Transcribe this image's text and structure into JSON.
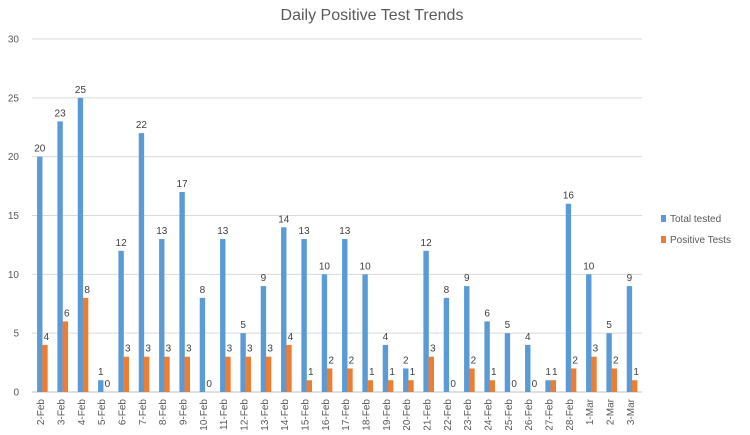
{
  "chart_data": {
    "type": "bar",
    "title": "Daily Positive Test Trends",
    "xlabel": "",
    "ylabel": "",
    "ylim": [
      0,
      30
    ],
    "yticks": [
      0,
      5,
      10,
      15,
      20,
      25,
      30
    ],
    "grid": true,
    "legend_position": "right",
    "categories": [
      "2-Feb",
      "3-Feb",
      "4-Feb",
      "5-Feb",
      "6-Feb",
      "7-Feb",
      "8-Feb",
      "9-Feb",
      "10-Feb",
      "11-Feb",
      "12-Feb",
      "13-Feb",
      "14-Feb",
      "15-Feb",
      "16-Feb",
      "17-Feb",
      "18-Feb",
      "19-Feb",
      "20-Feb",
      "21-Feb",
      "22-Feb",
      "23-Feb",
      "24-Feb",
      "25-Feb",
      "26-Feb",
      "27-Feb",
      "28-Feb",
      "1-Mar",
      "2-Mar",
      "3-Mar"
    ],
    "series": [
      {
        "name": "Total tested",
        "color": "#5b9bd5",
        "values": [
          20,
          23,
          25,
          1,
          12,
          22,
          13,
          17,
          8,
          13,
          5,
          9,
          14,
          13,
          10,
          13,
          10,
          4,
          2,
          12,
          8,
          9,
          6,
          5,
          4,
          1,
          16,
          10,
          5,
          9
        ]
      },
      {
        "name": "Positive Tests",
        "color": "#ed7d31",
        "values": [
          4,
          6,
          8,
          0,
          3,
          3,
          3,
          3,
          0,
          3,
          3,
          3,
          4,
          1,
          2,
          2,
          1,
          1,
          1,
          3,
          0,
          2,
          1,
          0,
          0,
          1,
          2,
          3,
          2,
          1
        ]
      }
    ]
  }
}
